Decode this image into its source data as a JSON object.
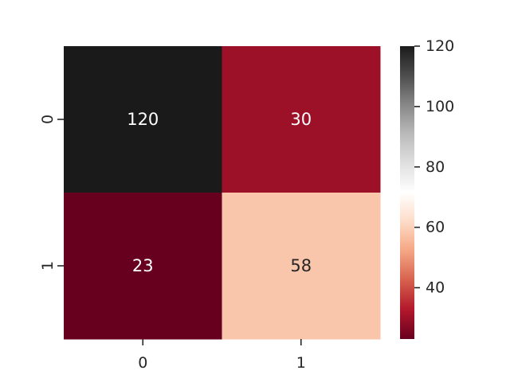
{
  "chart_data": {
    "type": "heatmap",
    "title": "",
    "xlabel": "",
    "ylabel": "",
    "x_categories": [
      "0",
      "1"
    ],
    "y_categories": [
      "0",
      "1"
    ],
    "values": [
      [
        120,
        30
      ],
      [
        23,
        58
      ]
    ],
    "annotations": [
      [
        "120",
        "30"
      ],
      [
        "23",
        "58"
      ]
    ],
    "colormap": "RdGy",
    "value_range": [
      23,
      120
    ],
    "colorbar": {
      "placement": "right",
      "ticks": [
        40,
        60,
        80,
        100,
        120
      ],
      "tick_labels": [
        "40",
        "60",
        "80",
        "100",
        "120"
      ]
    },
    "colors": {
      "low": "#67001f",
      "mid": "#ffffff",
      "high": "#1a1a1a",
      "text_dark": "#262626",
      "text_light": "#ffffff"
    }
  }
}
